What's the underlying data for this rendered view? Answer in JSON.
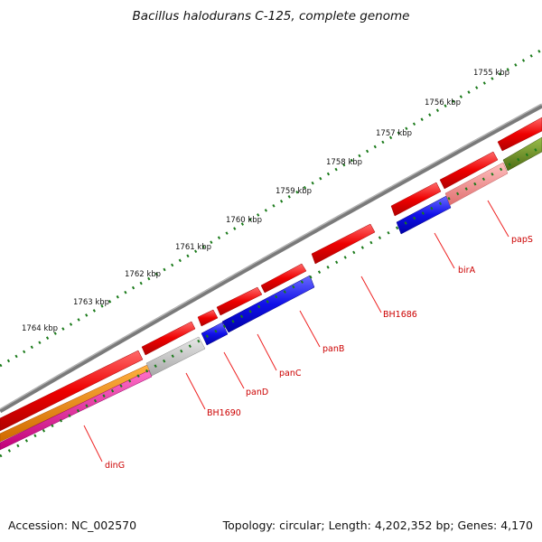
{
  "title": "Bacillus halodurans C-125, complete genome",
  "footer": {
    "accession": "Accession: NC_002570",
    "stats": "Topology: circular; Length: 4,202,352 bp; Genes: 4,170"
  },
  "scale_labels": [
    "1755 kbp",
    "1756 kbp",
    "1757 kbp",
    "1758 kbp",
    "1759 kbp",
    "1760 kbp",
    "1761 kbp",
    "1762 kbp",
    "1763 kbp",
    "1764 kbp"
  ],
  "gene_labels": [
    "papS",
    "birA",
    "BH1686",
    "panB",
    "panC",
    "panD",
    "BH1690",
    "dinG"
  ],
  "colors": {
    "forward": "#ee0000",
    "reverse": "#2200ee",
    "grey": "#c0c0c0",
    "pink": "#f09090",
    "olive": "#6b8e23",
    "orange": "#f08a00",
    "magenta": "#e8209a",
    "backbone": "#808080",
    "ticks": "#1a7a1a",
    "label": "#cc0000"
  }
}
